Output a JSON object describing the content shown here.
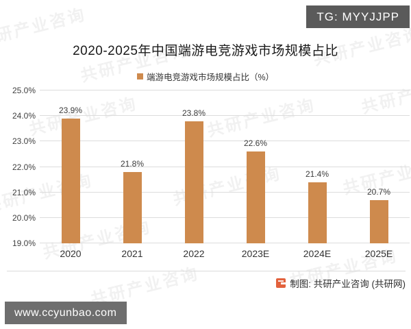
{
  "badge": {
    "text": "TG: MYYJJPP"
  },
  "legend": {
    "label": "端游电竞游戏市场规模占比（%）"
  },
  "footer": {
    "attribution": "制图: 共研产业咨询 (共研网)",
    "logo": "gongyan-logo",
    "site": "www.ccyunbao.com"
  },
  "background_watermark": {
    "text": "共研产业咨询"
  },
  "colors": {
    "bar": "#CE8A4D",
    "grid": "#DCDCDC",
    "badge_bg": "#5A5A5A",
    "site_badge_bg": "#6E6E6E",
    "logo": "#E2613C"
  },
  "chart_data": {
    "type": "bar",
    "title": "2020-2025年中国端游电竞游戏市场规模占比",
    "categories": [
      "2020",
      "2021",
      "2022",
      "2023E",
      "2024E",
      "2025E"
    ],
    "values": [
      23.9,
      21.8,
      23.8,
      22.6,
      21.4,
      20.7
    ],
    "value_labels": [
      "23.9%",
      "21.8%",
      "23.8%",
      "22.6%",
      "21.4%",
      "20.7%"
    ],
    "series_name": "端游电竞游戏市场规模占比（%）",
    "xlabel": "",
    "ylabel": "",
    "ylim": [
      19.0,
      25.0
    ],
    "ytick_step": 1.0,
    "ytick_labels": [
      "19.0%",
      "20.0%",
      "21.0%",
      "22.0%",
      "23.0%",
      "24.0%",
      "25.0%"
    ],
    "grid": true,
    "legend_position": "top",
    "bar_color": "#CE8A4D"
  }
}
